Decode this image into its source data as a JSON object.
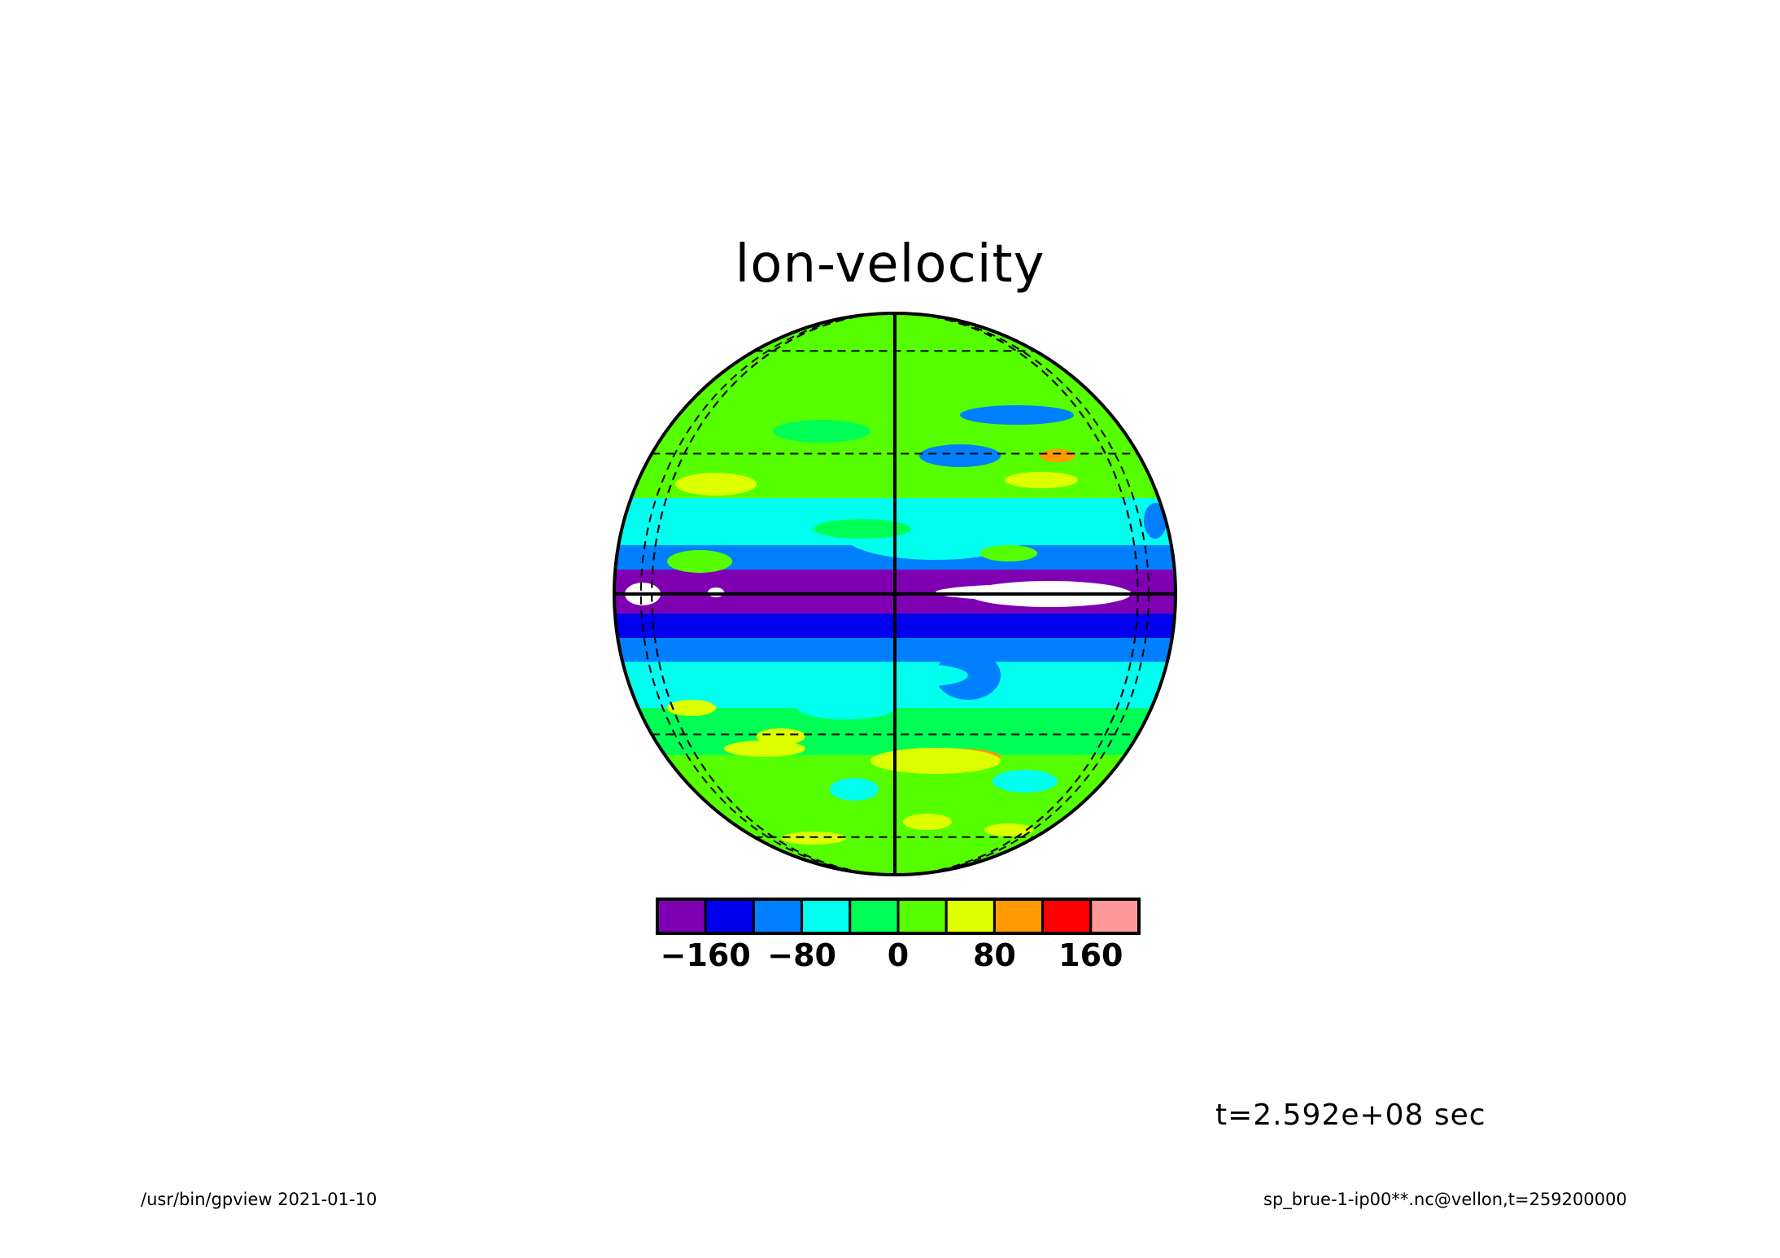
{
  "chart_data": {
    "type": "heatmap",
    "title": "lon-velocity",
    "projection": "orthographic",
    "colorbar": {
      "colors": [
        "#7f00b3",
        "#0000ee",
        "#0080ff",
        "#00ffee",
        "#00ff55",
        "#55ff00",
        "#ddff00",
        "#ff9900",
        "#ff0000",
        "#ff9999"
      ],
      "tick_labels": [
        "−160",
        "−80",
        "0",
        "80",
        "160"
      ],
      "tick_values": [
        -160,
        -80,
        0,
        80,
        160
      ],
      "range": [
        -200,
        200
      ],
      "interval": 40
    },
    "background_color": "#55ff00",
    "bands": [
      {
        "lat": [
          60,
          90
        ],
        "value": 10
      },
      {
        "lat": [
          35,
          60
        ],
        "value": 10
      },
      {
        "lat": [
          20,
          35
        ],
        "value": 0
      },
      {
        "lat": [
          10,
          20
        ],
        "value": -45
      },
      {
        "lat": [
          5,
          10
        ],
        "value": -110
      },
      {
        "lat": [
          -4,
          5
        ],
        "value": -190
      },
      {
        "lat": [
          -9,
          -4
        ],
        "value": -130
      },
      {
        "lat": [
          -14,
          -9
        ],
        "value": -90
      },
      {
        "lat": [
          -24,
          -14
        ],
        "value": -45
      },
      {
        "lat": [
          -35,
          -24
        ],
        "value": -5
      },
      {
        "lat": [
          -48,
          -35
        ],
        "value": 20
      },
      {
        "lat": [
          -90,
          -48
        ],
        "value": 15
      }
    ],
    "gridlines": {
      "latitudes": [
        -60,
        -30,
        30,
        60
      ],
      "longitudes": [
        -60,
        60
      ],
      "solid_lines": [
        "equator",
        "central_meridian"
      ]
    },
    "grid": true
  },
  "time_label": "t=2.592e+08 sec",
  "footer": {
    "left": "/usr/bin/gpview   2021-01-10",
    "right": "sp_brue-1-ip00**.nc@vellon,t=259200000"
  }
}
